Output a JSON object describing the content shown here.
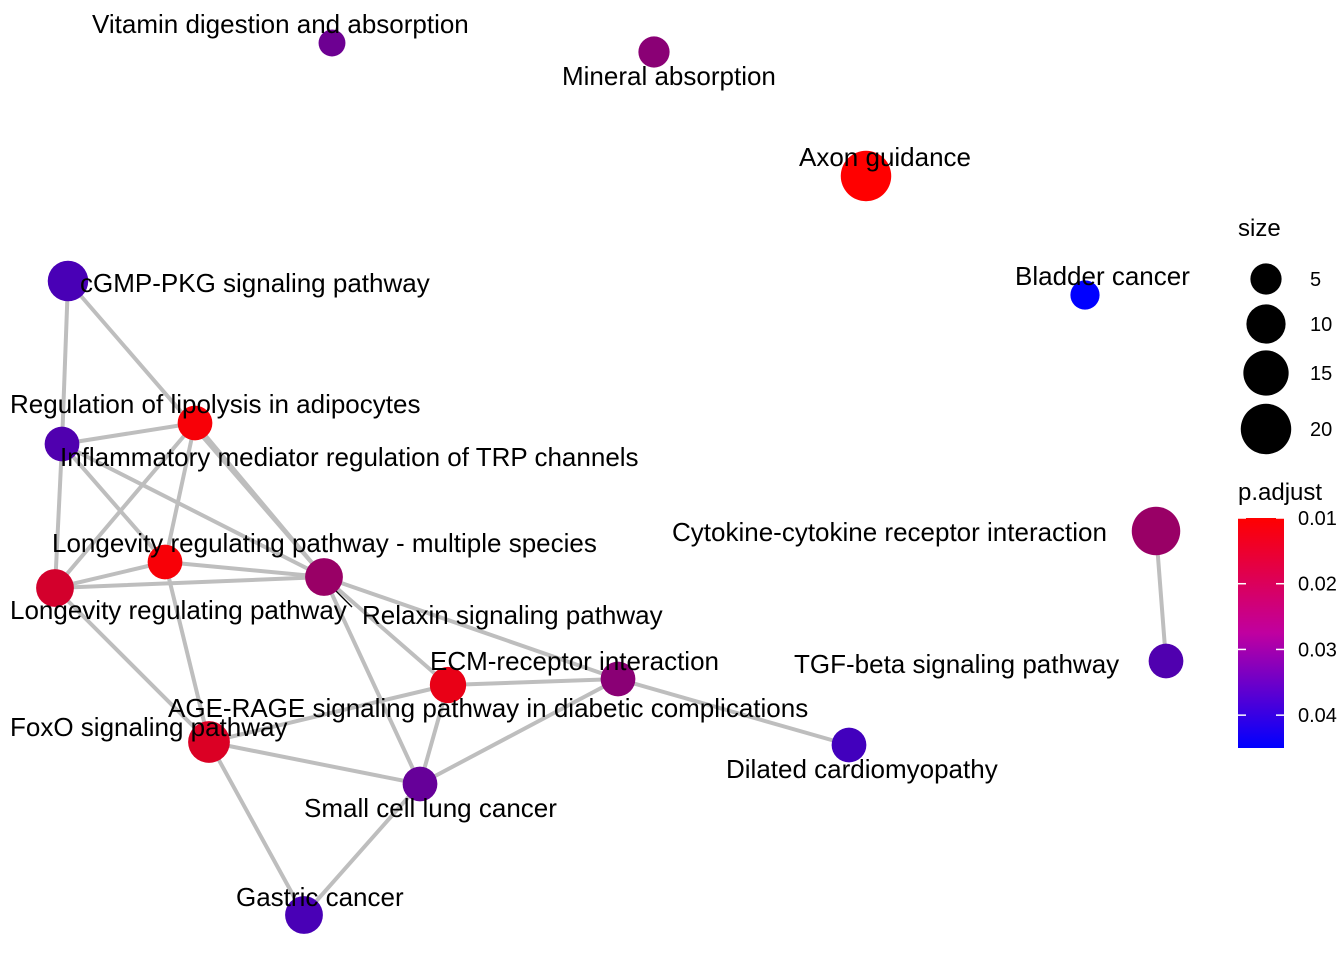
{
  "nodes": [
    {
      "id": "vitamin",
      "label": "Vitamin digestion and absorption",
      "size": 3,
      "p_adjust": 0.03
    },
    {
      "id": "mineral",
      "label": "Mineral absorption",
      "size": 5,
      "p_adjust": 0.026
    },
    {
      "id": "axon",
      "label": "Axon guidance",
      "size": 20,
      "p_adjust": 0.01
    },
    {
      "id": "bladder",
      "label": "Bladder cancer",
      "size": 4,
      "p_adjust": 0.045
    },
    {
      "id": "cgmp",
      "label": "cGMP-PKG signaling pathway",
      "size": 11,
      "p_adjust": 0.035
    },
    {
      "id": "lipolysis",
      "label": "Regulation of lipolysis in adipocytes",
      "size": 7,
      "p_adjust": 0.011
    },
    {
      "id": "trp",
      "label": "Inflammatory mediator regulation of TRP channels",
      "size": 7,
      "p_adjust": 0.034
    },
    {
      "id": "longevity_multi",
      "label": "Longevity regulating pathway - multiple species",
      "size": 7,
      "p_adjust": 0.011
    },
    {
      "id": "longevity",
      "label": "Longevity regulating pathway",
      "size": 9,
      "p_adjust": 0.016
    },
    {
      "id": "relaxin",
      "label": "Relaxin signaling pathway",
      "size": 9,
      "p_adjust": 0.024
    },
    {
      "id": "cytokine",
      "label": "Cytokine-cytokine receptor interaction",
      "size": 18,
      "p_adjust": 0.024
    },
    {
      "id": "ecm",
      "label": "ECM-receptor interaction",
      "size": 8,
      "p_adjust": 0.013
    },
    {
      "id": "tgf",
      "label": "TGF-beta signaling pathway",
      "size": 7,
      "p_adjust": 0.034
    },
    {
      "id": "agerage",
      "label": "AGE-RAGE signaling pathway in diabetic complications",
      "size": 7,
      "p_adjust": 0.026
    },
    {
      "id": "foxo",
      "label": "FoxO signaling pathway",
      "size": 12,
      "p_adjust": 0.015
    },
    {
      "id": "dilated",
      "label": "Dilated cardiomyopathy",
      "size": 7,
      "p_adjust": 0.036
    },
    {
      "id": "sclc",
      "label": "Small cell lung cancer",
      "size": 7,
      "p_adjust": 0.031
    },
    {
      "id": "gastric",
      "label": "Gastric cancer",
      "size": 9,
      "p_adjust": 0.035
    }
  ],
  "edges": [
    [
      "cgmp",
      "trp"
    ],
    [
      "cgmp",
      "relaxin"
    ],
    [
      "trp",
      "lipolysis"
    ],
    [
      "trp",
      "longevity"
    ],
    [
      "trp",
      "relaxin"
    ],
    [
      "trp",
      "longevity_multi"
    ],
    [
      "lipolysis",
      "longevity"
    ],
    [
      "lipolysis",
      "longevity_multi"
    ],
    [
      "lipolysis",
      "relaxin"
    ],
    [
      "longevity",
      "longevity_multi"
    ],
    [
      "longevity",
      "relaxin"
    ],
    [
      "longevity",
      "foxo"
    ],
    [
      "longevity_multi",
      "relaxin"
    ],
    [
      "longevity_multi",
      "foxo"
    ],
    [
      "relaxin",
      "ecm"
    ],
    [
      "relaxin",
      "agerage"
    ],
    [
      "relaxin",
      "sclc"
    ],
    [
      "ecm",
      "agerage"
    ],
    [
      "ecm",
      "foxo"
    ],
    [
      "ecm",
      "sclc"
    ],
    [
      "agerage",
      "dilated"
    ],
    [
      "agerage",
      "sclc"
    ],
    [
      "foxo",
      "sclc"
    ],
    [
      "foxo",
      "gastric"
    ],
    [
      "sclc",
      "gastric"
    ],
    [
      "cytokine",
      "tgf"
    ]
  ],
  "legend": {
    "size_title": "size",
    "size_breaks": [
      5,
      10,
      15,
      20
    ],
    "size_labels": [
      "5",
      "10",
      "15",
      "20"
    ],
    "color_title": "p.adjust",
    "color_breaks": [
      0.01,
      0.02,
      0.03,
      0.04
    ],
    "color_labels": [
      "0.01",
      "0.02",
      "0.03",
      "0.04"
    ],
    "color_low_value": 0.01,
    "color_high_value": 0.045,
    "color_low": "#ff0000",
    "color_high": "#0000ff"
  }
}
